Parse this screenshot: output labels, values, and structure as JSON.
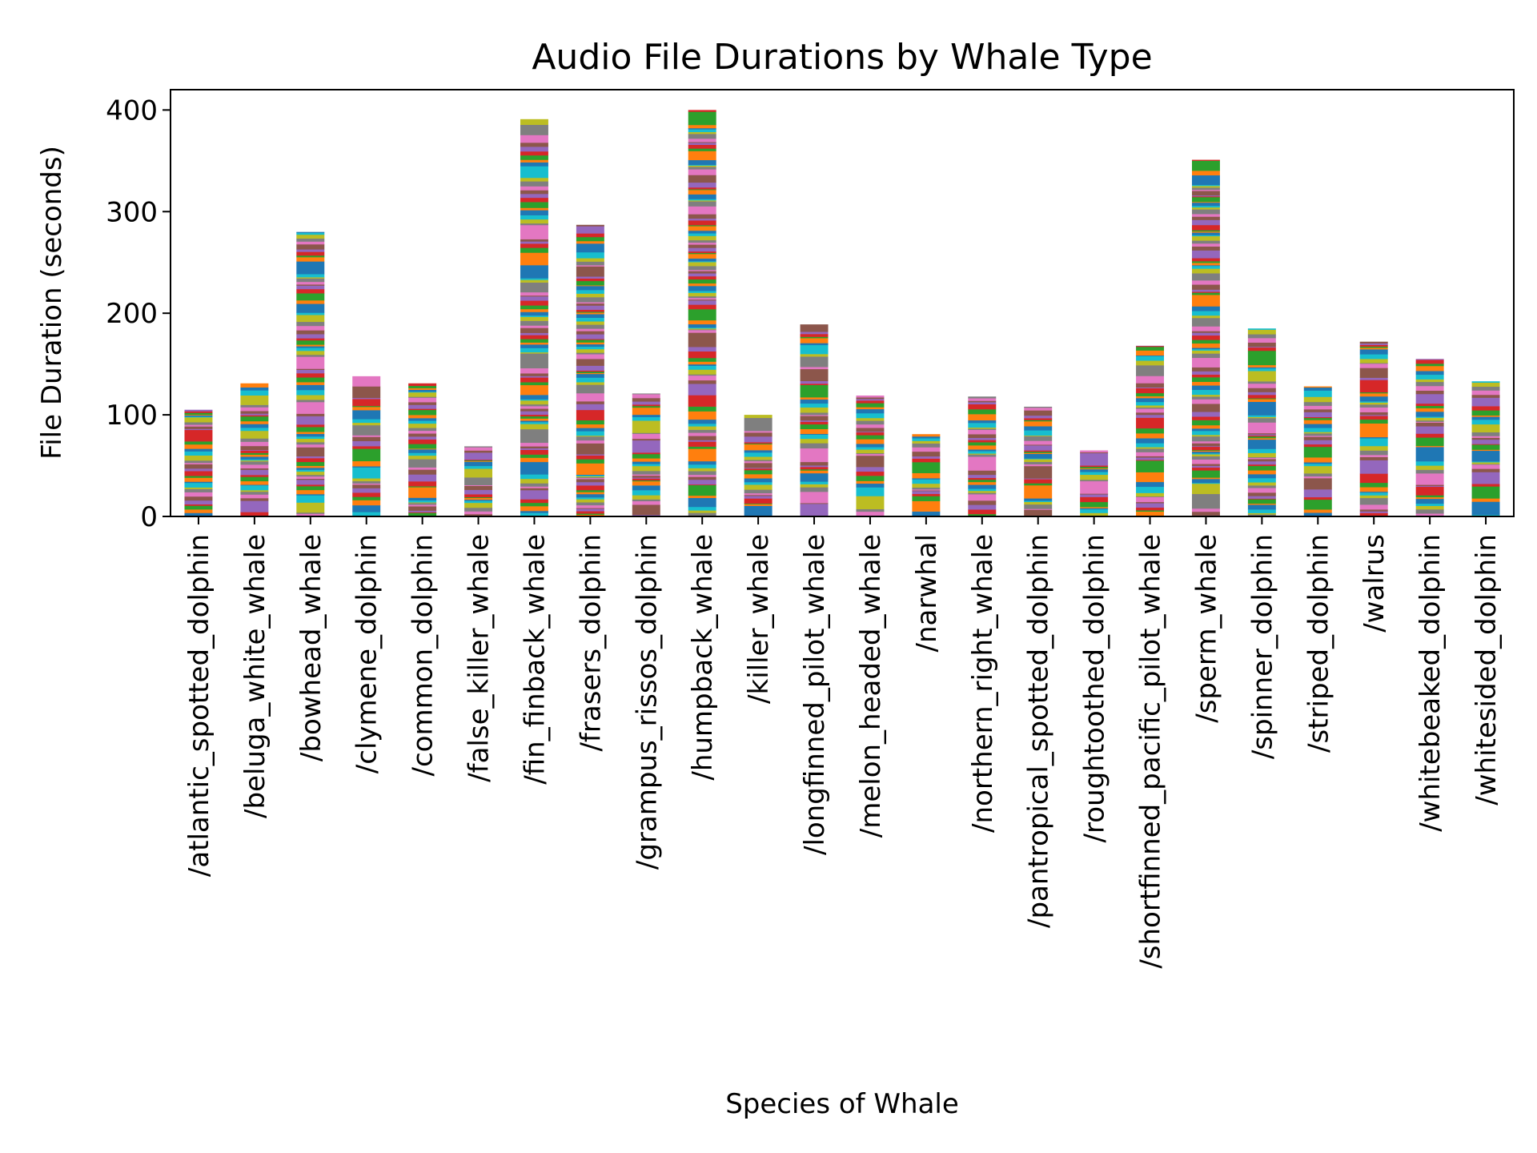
{
  "chart_data": {
    "type": "bar",
    "stacked": true,
    "title": "Audio File Durations by Whale Type",
    "xlabel": "Species of Whale",
    "ylabel": "File Duration (seconds)",
    "ylim": [
      0,
      420
    ],
    "yticks": [
      0,
      100,
      200,
      300,
      400
    ],
    "grid": false,
    "legend": "none",
    "segment_colors": [
      "#1f77b4",
      "#ff7f0e",
      "#2ca02c",
      "#d62728",
      "#9467bd",
      "#8c564b",
      "#e377c2",
      "#7f7f7f",
      "#bcbd22",
      "#17becf"
    ],
    "categories": [
      "/atlantic_spotted_dolphin",
      "/beluga_white_whale",
      "/bowhead_whale",
      "/clymene_dolphin",
      "/common_dolphin",
      "/false_killer_whale",
      "/fin_finback_whale",
      "/frasers_dolphin",
      "/grampus_rissos_dolphin",
      "/humpback_whale",
      "/killer_whale",
      "/longfinned_pilot_whale",
      "/melon_headed_whale",
      "/narwhal",
      "/northern_right_whale",
      "/pantropical_spotted_dolphin",
      "/roughtoothed_dolphin",
      "/shortfinned_pacific_pilot_whale",
      "/sperm_whale",
      "/spinner_dolphin",
      "/striped_dolphin",
      "/walrus",
      "/whitebeaked_dolphin",
      "/whitesided_dolphin"
    ],
    "values": [
      105,
      131,
      280,
      138,
      131,
      69,
      391,
      287,
      121,
      400,
      100,
      189,
      119,
      81,
      118,
      108,
      65,
      168,
      351,
      185,
      128,
      172,
      155,
      133
    ]
  }
}
